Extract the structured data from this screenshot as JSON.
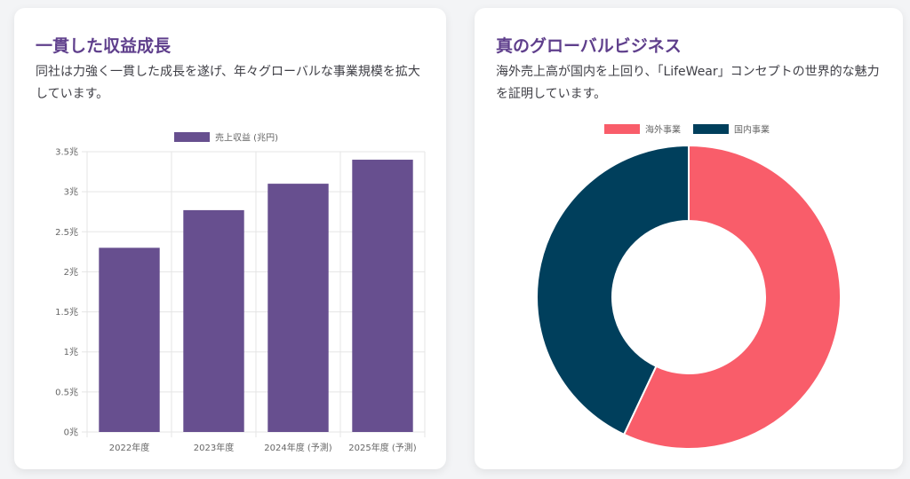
{
  "cards": {
    "growth": {
      "title": "一貫した収益成長",
      "description": "同社は力強く一貫した成長を遂げ、年々グローバルな事業規模を拡大しています。"
    },
    "global": {
      "title": "真のグローバルビジネス",
      "description": "海外売上高が国内を上回り、「LifeWear」コンセプトの世界的な魅力を証明しています。"
    }
  },
  "chart_data": [
    {
      "type": "bar",
      "categories": [
        "2022年度",
        "2023年度",
        "2024年度 (予測)",
        "2025年度 (予測)"
      ],
      "series": [
        {
          "name": "売上収益 (兆円)",
          "values": [
            2.3,
            2.77,
            3.1,
            3.4
          ],
          "color": "#674f8f"
        }
      ],
      "ylim": [
        0,
        3.5
      ],
      "yticks": [
        "0兆",
        "0.5兆",
        "1兆",
        "1.5兆",
        "2兆",
        "2.5兆",
        "3兆",
        "3.5兆"
      ],
      "grid": true,
      "legend": "top"
    },
    {
      "type": "pie",
      "subtype": "doughnut",
      "labels": [
        "海外事業",
        "国内事業"
      ],
      "values": [
        57,
        43
      ],
      "colors": [
        "#f95d6a",
        "#003f5c"
      ],
      "legend": "top"
    }
  ]
}
